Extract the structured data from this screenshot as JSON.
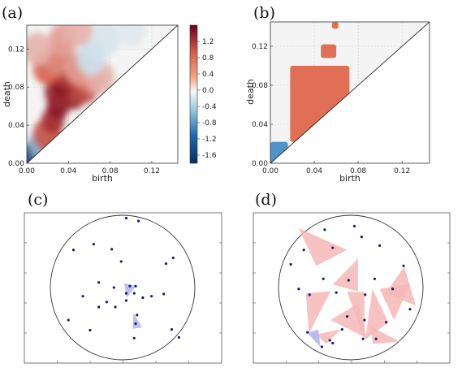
{
  "panel_labels": [
    "(a)",
    "(b)",
    "(c)",
    "(d)"
  ],
  "colors": {
    "pos_dark": "#7f0b1f",
    "pos_mid": "#d6604d",
    "pos_light": "#f4a582",
    "neutral": "#f2f2f2",
    "neg_light": "#a6cde3",
    "neg_dark": "#08306b",
    "mask_red": "#e06f56",
    "mask_blue": "#4f94c8",
    "point": "#1a1a80",
    "triangle_blue": "#b4b4f0",
    "triangle_red": "#f5b7b7"
  },
  "chart_data": [
    {
      "type": "heatmap",
      "panel": "(a)",
      "xlabel": "birth",
      "ylabel": "death",
      "xlim": [
        0.0,
        0.145
      ],
      "ylim": [
        0.0,
        0.145
      ],
      "xticks": [
        "0.00",
        "0.04",
        "0.08",
        "0.12"
      ],
      "yticks": [
        "0.00",
        "0.04",
        "0.08",
        "0.12"
      ],
      "grid": true,
      "diagonal": "birth = death",
      "colorbar": {
        "range": [
          -1.8,
          1.6
        ],
        "ticks": [
          "1.2",
          "0.8",
          "0.4",
          "0.0",
          "-0.4",
          "-0.8",
          "-1.2",
          "-1.6"
        ]
      },
      "blobs": [
        {
          "birth": 0.004,
          "death": 0.008,
          "value": -1.6
        },
        {
          "birth": 0.01,
          "death": 0.014,
          "value": -1.3
        },
        {
          "birth": 0.016,
          "death": 0.022,
          "value": -0.9
        },
        {
          "birth": 0.02,
          "death": 0.03,
          "value": 0.8
        },
        {
          "birth": 0.025,
          "death": 0.045,
          "value": 1.1
        },
        {
          "birth": 0.03,
          "death": 0.06,
          "value": 1.3
        },
        {
          "birth": 0.028,
          "death": 0.075,
          "value": 1.2
        },
        {
          "birth": 0.035,
          "death": 0.085,
          "value": 1.4
        },
        {
          "birth": 0.04,
          "death": 0.095,
          "value": 1.0
        },
        {
          "birth": 0.045,
          "death": 0.07,
          "value": 1.2
        },
        {
          "birth": 0.055,
          "death": 0.08,
          "value": 0.9
        },
        {
          "birth": 0.06,
          "death": 0.09,
          "value": 0.6
        },
        {
          "birth": 0.02,
          "death": 0.1,
          "value": 0.7
        },
        {
          "birth": 0.03,
          "death": 0.11,
          "value": 0.5
        },
        {
          "birth": 0.05,
          "death": 0.1,
          "value": 0.4
        },
        {
          "birth": 0.07,
          "death": 0.09,
          "value": 0.3
        },
        {
          "birth": 0.035,
          "death": 0.13,
          "value": 0.4
        },
        {
          "birth": 0.05,
          "death": 0.14,
          "value": 0.3
        },
        {
          "birth": 0.075,
          "death": 0.13,
          "value": -0.3
        },
        {
          "birth": 0.1,
          "death": 0.14,
          "value": -0.2
        },
        {
          "birth": 0.062,
          "death": 0.11,
          "value": -0.4
        },
        {
          "birth": 0.01,
          "death": 0.12,
          "value": 0.3
        }
      ]
    },
    {
      "type": "heatmap",
      "panel": "(b)",
      "xlabel": "birth",
      "ylabel": "death",
      "xlim": [
        0.0,
        0.145
      ],
      "ylim": [
        0.0,
        0.145
      ],
      "xticks": [
        "0.00",
        "0.04",
        "0.08",
        "0.12"
      ],
      "yticks": [
        "0.00",
        "0.04",
        "0.08",
        "0.12"
      ],
      "grid": true,
      "diagonal": "birth = death",
      "significant_regions": [
        {
          "sign": "negative",
          "birth_range": [
            0.0,
            0.016
          ],
          "death_range": [
            0.0,
            0.022
          ]
        },
        {
          "sign": "positive",
          "birth_range": [
            0.018,
            0.072
          ],
          "death_range": [
            0.022,
            0.1
          ]
        },
        {
          "sign": "positive",
          "birth_range": [
            0.046,
            0.06
          ],
          "death_range": [
            0.108,
            0.122
          ]
        },
        {
          "sign": "positive",
          "birth_range": [
            0.056,
            0.062
          ],
          "death_range": [
            0.138,
            0.145
          ]
        }
      ]
    }
  ],
  "point_clouds": [
    {
      "panel": "(c)",
      "boundary": "circle",
      "points": [
        [
          0.05,
          0.96
        ],
        [
          0.22,
          0.92
        ],
        [
          -0.68,
          0.52
        ],
        [
          -0.4,
          0.6
        ],
        [
          -0.15,
          0.53
        ],
        [
          -0.02,
          0.36
        ],
        [
          0.7,
          0.41
        ],
        [
          0.6,
          0.33
        ],
        [
          -0.33,
          0.07
        ],
        [
          -0.12,
          0.0
        ],
        [
          0.1,
          0.02
        ],
        [
          0.18,
          0.02
        ],
        [
          -0.22,
          -0.2
        ],
        [
          -0.55,
          -0.12
        ],
        [
          0.05,
          -0.08
        ],
        [
          0.16,
          -0.08
        ],
        [
          0.28,
          -0.14
        ],
        [
          0.4,
          -0.12
        ],
        [
          0.57,
          -0.09
        ],
        [
          0.05,
          -0.18
        ],
        [
          -0.1,
          -0.27
        ],
        [
          -0.33,
          -0.27
        ],
        [
          0.2,
          -0.38
        ],
        [
          -0.75,
          -0.45
        ],
        [
          -0.45,
          -0.59
        ],
        [
          0.18,
          -0.5
        ],
        [
          0.16,
          -0.7
        ],
        [
          0.68,
          -0.58
        ],
        [
          0.78,
          -0.69
        ]
      ],
      "triangles": [
        [
          [
            0.02,
            0.06
          ],
          [
            0.18,
            0.02
          ],
          [
            0.06,
            -0.14
          ]
        ],
        [
          [
            0.15,
            -0.35
          ],
          [
            0.27,
            -0.55
          ],
          [
            0.14,
            -0.57
          ]
        ]
      ],
      "triangle_color": "blue"
    },
    {
      "panel": "(d)",
      "boundary": "circle",
      "points": [
        [
          0.05,
          0.85
        ],
        [
          -0.36,
          0.8
        ],
        [
          -0.65,
          0.52
        ],
        [
          0.15,
          0.7
        ],
        [
          -0.25,
          0.55
        ],
        [
          0.4,
          0.58
        ],
        [
          -0.83,
          0.32
        ],
        [
          0.73,
          0.3
        ],
        [
          -0.38,
          0.12
        ],
        [
          -0.03,
          0.1
        ],
        [
          0.33,
          0.12
        ],
        [
          -0.57,
          -0.1
        ],
        [
          -0.72,
          -0.02
        ],
        [
          -0.2,
          -0.07
        ],
        [
          0.2,
          -0.1
        ],
        [
          0.58,
          -0.02
        ],
        [
          0.82,
          -0.3
        ],
        [
          -0.05,
          -0.4
        ],
        [
          0.19,
          -0.45
        ],
        [
          0.49,
          -0.48
        ],
        [
          -0.12,
          -0.58
        ],
        [
          0.35,
          -0.71
        ],
        [
          -0.6,
          -0.62
        ],
        [
          -0.25,
          -0.77
        ],
        [
          0.17,
          -0.71
        ],
        [
          -0.4,
          -0.82
        ],
        [
          -0.29,
          -0.73
        ]
      ],
      "triangles": [
        [
          [
            -0.72,
            0.82
          ],
          [
            -0.05,
            0.52
          ],
          [
            -0.48,
            0.3
          ]
        ],
        [
          [
            0.1,
            0.4
          ],
          [
            -0.25,
            0.04
          ],
          [
            0.1,
            -0.05
          ]
        ],
        [
          [
            -0.62,
            -0.08
          ],
          [
            -0.28,
            -0.05
          ],
          [
            -0.58,
            -0.64
          ]
        ],
        [
          [
            -0.05,
            -0.06
          ],
          [
            0.19,
            -0.06
          ],
          [
            0.19,
            -0.72
          ]
        ],
        [
          [
            -0.28,
            -0.45
          ],
          [
            0.1,
            -0.22
          ],
          [
            0.22,
            -0.7
          ]
        ],
        [
          [
            -0.48,
            -0.65
          ],
          [
            -0.14,
            -0.58
          ],
          [
            -0.34,
            -0.78
          ]
        ],
        [
          [
            0.3,
            -0.02
          ],
          [
            0.52,
            -0.48
          ],
          [
            0.2,
            -0.72
          ]
        ],
        [
          [
            0.28,
            -0.54
          ],
          [
            0.68,
            -0.75
          ],
          [
            0.3,
            -0.78
          ]
        ],
        [
          [
            0.4,
            -0.02
          ],
          [
            0.82,
            0.05
          ],
          [
            0.6,
            -0.45
          ]
        ],
        [
          [
            0.74,
            0.29
          ],
          [
            0.9,
            -0.25
          ],
          [
            0.48,
            -0.08
          ]
        ]
      ],
      "triangle_color": "red",
      "highlighted_triangle_color": "blue",
      "highlighted_triangle": [
        [
          -0.6,
          -0.63
        ],
        [
          -0.45,
          -0.58
        ],
        [
          -0.42,
          -0.82
        ]
      ]
    }
  ]
}
